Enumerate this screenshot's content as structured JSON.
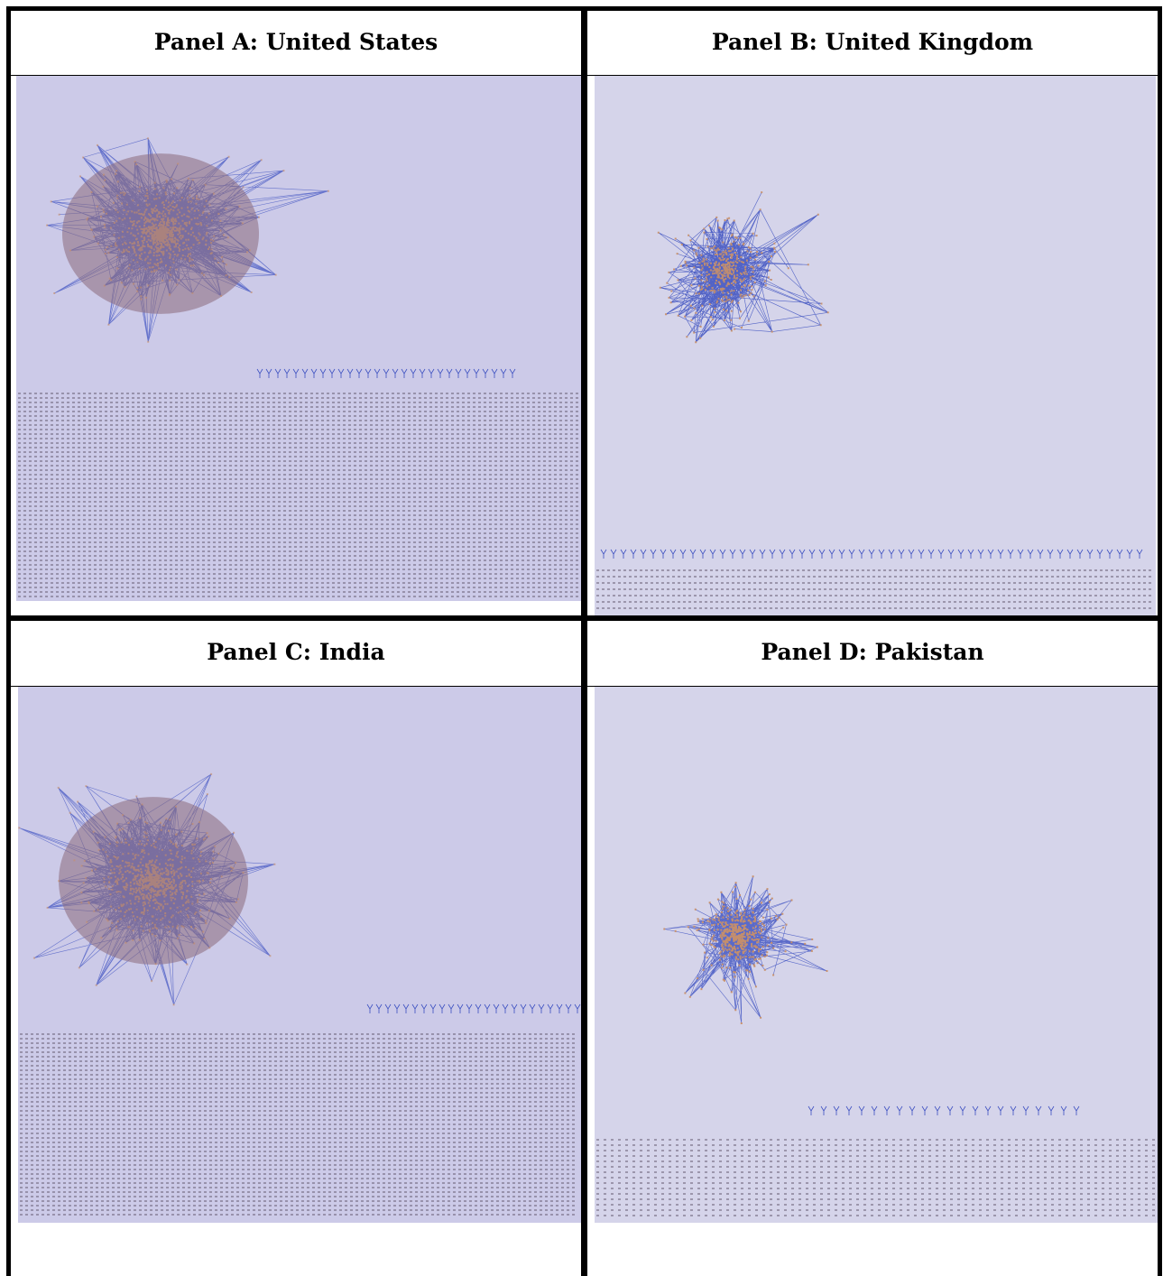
{
  "panels": [
    {
      "id": "A",
      "title": "Panel A: United States",
      "bg": "#cccae8"
    },
    {
      "id": "B",
      "title": "Panel B: United Kingdom",
      "bg": "#d5d4ea"
    },
    {
      "id": "C",
      "title": "Panel C: India",
      "bg": "#cccae8"
    },
    {
      "id": "D",
      "title": "Panel D: Pakistan",
      "bg": "#d5d4ea"
    }
  ],
  "colors": {
    "edge": "#3b4fc0",
    "node": "#c99068",
    "border": "#000000"
  }
}
